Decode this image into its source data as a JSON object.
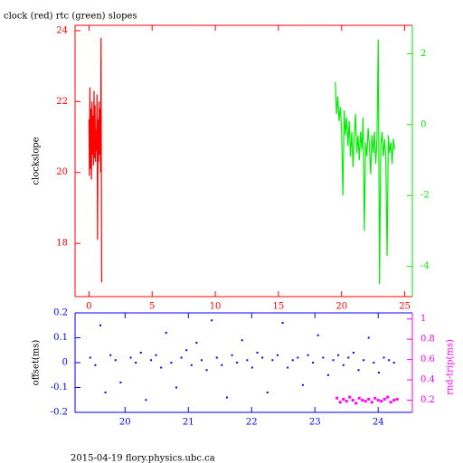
{
  "footer": "2015-04-19 flory.physics.ubc.ca",
  "chart_data": [
    {
      "type": "line",
      "title": "clock (red) rtc (green) slopes",
      "ylabel": "clockslope",
      "xlim": [
        -1.1,
        25.6
      ],
      "xticks": [
        0,
        5,
        10,
        15,
        20,
        25
      ],
      "ylim": [
        16.5,
        24.15
      ],
      "yticks": [
        18,
        20,
        22,
        24
      ],
      "y2lim": [
        -4.85,
        2.8
      ],
      "y2ticks": [
        -4,
        -2,
        0,
        2
      ],
      "series": [
        {
          "name": "clock",
          "color": "#ff0000",
          "x": [
            0,
            0.04,
            0.08,
            0.12,
            0.16,
            0.2,
            0.24,
            0.28,
            0.32,
            0.36,
            0.4,
            0.44,
            0.48,
            0.52,
            0.56,
            0.6,
            0.64,
            0.68,
            0.72,
            0.76,
            0.8,
            0.84,
            0.88,
            0.92,
            0.96,
            1.0
          ],
          "values": [
            21.5,
            19.9,
            22.4,
            20.1,
            21.8,
            19.8,
            22.0,
            20.5,
            21.6,
            20.2,
            22.3,
            20.4,
            21.9,
            20.3,
            21.2,
            20.6,
            22.2,
            18.1,
            21.5,
            20.3,
            22.0,
            20.5,
            21.8,
            20.0,
            23.8,
            16.9
          ]
        },
        {
          "name": "rtc",
          "color": "#00ee00",
          "axis": "y2",
          "x": [
            19.5,
            19.6,
            19.7,
            19.8,
            19.9,
            20.0,
            20.1,
            20.2,
            20.3,
            20.4,
            20.5,
            20.6,
            20.7,
            20.8,
            20.9,
            21.0,
            21.1,
            21.2,
            21.3,
            21.4,
            21.5,
            21.6,
            21.7,
            21.8,
            21.9,
            22.0,
            22.1,
            22.2,
            22.3,
            22.4,
            22.5,
            22.6,
            22.7,
            22.8,
            22.9,
            23.0,
            23.1,
            23.2,
            23.3,
            23.4,
            23.5,
            23.6,
            23.7,
            23.8,
            23.9,
            24.0,
            24.1,
            24.2
          ],
          "values": [
            1.2,
            0.3,
            0.8,
            0.1,
            0.5,
            -0.2,
            -2.0,
            0.4,
            -0.3,
            0.2,
            -0.6,
            0.1,
            -0.9,
            -0.2,
            -1.2,
            -0.4,
            0.3,
            -0.8,
            -0.3,
            -1.0,
            -0.2,
            -0.7,
            0.2,
            -3.0,
            -0.5,
            -0.9,
            -0.1,
            -0.6,
            -1.4,
            -0.3,
            -0.8,
            -0.2,
            -1.1,
            -0.4,
            2.4,
            -4.5,
            -0.6,
            -0.2,
            -0.9,
            -0.4,
            -1.0,
            -3.7,
            -0.3,
            -0.8,
            -0.5,
            -1.1,
            -0.4,
            -0.7
          ]
        }
      ]
    },
    {
      "type": "scatter",
      "ylabel": "offset(ms)",
      "y2label": "rnd-trip(ms)",
      "xlim": [
        19.21,
        24.54
      ],
      "xticks": [
        20,
        21,
        22,
        23,
        24
      ],
      "ylim": [
        -0.2,
        0.2
      ],
      "yticks": [
        -0.2,
        -0.1,
        0,
        0.1,
        0.2
      ],
      "y2lim": [
        0.08,
        1.06
      ],
      "y2ticks": [
        0.2,
        0.4,
        0.6,
        0.8,
        1
      ],
      "series": [
        {
          "name": "offset",
          "color": "#0000ff",
          "x": [
            19.45,
            19.53,
            19.61,
            19.69,
            19.77,
            19.85,
            19.93,
            20.09,
            20.17,
            20.25,
            20.33,
            20.41,
            20.49,
            20.57,
            20.65,
            20.73,
            20.81,
            20.89,
            20.97,
            21.05,
            21.13,
            21.21,
            21.29,
            21.37,
            21.45,
            21.53,
            21.61,
            21.69,
            21.77,
            21.85,
            21.93,
            22.01,
            22.09,
            22.17,
            22.25,
            22.33,
            22.41,
            22.49,
            22.57,
            22.65,
            22.73,
            22.81,
            22.89,
            22.97,
            23.05,
            23.13,
            23.21,
            23.29,
            23.37,
            23.45,
            23.53,
            23.61,
            23.69,
            23.77,
            23.85,
            23.93,
            24.01,
            24.09,
            24.17,
            24.25
          ],
          "values": [
            0.02,
            -0.01,
            0.15,
            -0.12,
            0.03,
            0.01,
            -0.08,
            0.02,
            0.0,
            0.04,
            -0.15,
            0.01,
            0.03,
            -0.02,
            0.12,
            0.0,
            -0.1,
            0.02,
            0.05,
            -0.01,
            0.08,
            0.01,
            -0.03,
            0.17,
            0.02,
            -0.01,
            -0.14,
            0.03,
            0.0,
            0.09,
            0.01,
            -0.02,
            0.04,
            0.02,
            -0.12,
            0.01,
            0.03,
            0.16,
            -0.02,
            0.01,
            0.02,
            -0.09,
            0.03,
            0.0,
            0.11,
            0.02,
            -0.05,
            0.01,
            0.03,
            -0.01,
            0.02,
            0.04,
            -0.03,
            0.01,
            0.1,
            0.0,
            -0.04,
            0.02,
            0.01,
            0.0
          ]
        },
        {
          "name": "rnd-trip",
          "color": "#ff00ff",
          "axis": "y2",
          "x": [
            23.35,
            23.4,
            23.45,
            23.5,
            23.55,
            23.6,
            23.65,
            23.7,
            23.75,
            23.8,
            23.85,
            23.9,
            23.95,
            24.0,
            24.05,
            24.1,
            24.15,
            24.2,
            24.25,
            24.3
          ],
          "values": [
            0.22,
            0.18,
            0.21,
            0.19,
            0.23,
            0.2,
            0.17,
            0.22,
            0.2,
            0.19,
            0.21,
            0.18,
            0.22,
            0.2,
            0.19,
            0.21,
            0.23,
            0.18,
            0.2,
            0.21
          ]
        }
      ]
    }
  ]
}
